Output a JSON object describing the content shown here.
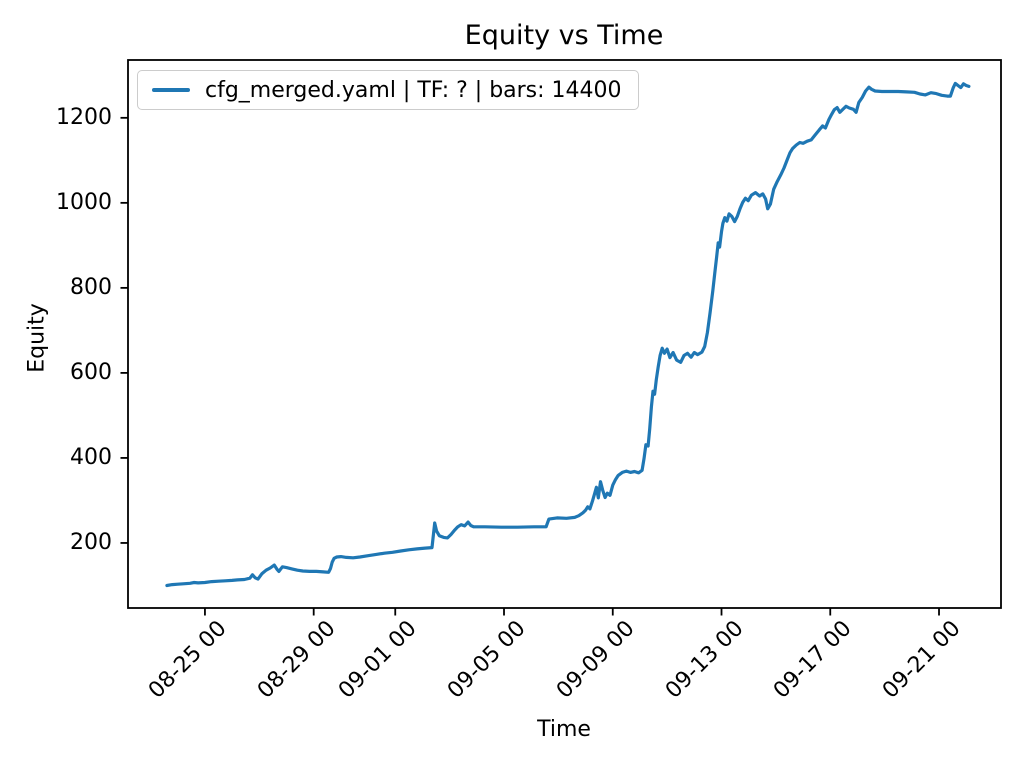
{
  "figure": {
    "background": "#ffffff",
    "text_color": "#000000",
    "spine_color": "#000000"
  },
  "legend": {
    "label": "cfg_merged.yaml | TF: ? | bars: 14400",
    "line_color": "#1f77b4",
    "position": "upper left",
    "border_color": "#cccccc"
  },
  "chart_data": {
    "type": "line",
    "title": "Equity vs Time",
    "xlabel": "Time",
    "ylabel": "Equity",
    "grid": false,
    "legend_position": "upper left",
    "x_unit": "days since 08-23 00:00, labels are MM-DD HH",
    "xlim": [
      -0.83,
      31.28
    ],
    "ylim": [
      47,
      1336
    ],
    "x_ticks": [
      {
        "day": 2,
        "label": "08-25 00"
      },
      {
        "day": 6,
        "label": "08-29 00"
      },
      {
        "day": 9,
        "label": "09-01 00"
      },
      {
        "day": 13,
        "label": "09-05 00"
      },
      {
        "day": 17,
        "label": "09-09 00"
      },
      {
        "day": 21,
        "label": "09-13 00"
      },
      {
        "day": 25,
        "label": "09-17 00"
      },
      {
        "day": 29,
        "label": "09-21 00"
      }
    ],
    "y_ticks": [
      {
        "value": 200,
        "label": "200"
      },
      {
        "value": 400,
        "label": "400"
      },
      {
        "value": 600,
        "label": "600"
      },
      {
        "value": 800,
        "label": "800"
      },
      {
        "value": 1000,
        "label": "1000"
      },
      {
        "value": 1200,
        "label": "1200"
      }
    ],
    "series": [
      {
        "name": "cfg_merged.yaml | TF: ? | bars: 14400",
        "color": "#1f77b4",
        "points": [
          [
            0.6,
            100
          ],
          [
            0.8,
            102
          ],
          [
            1.0,
            103
          ],
          [
            1.2,
            104
          ],
          [
            1.45,
            105
          ],
          [
            1.6,
            107
          ],
          [
            1.75,
            106
          ],
          [
            2.0,
            107
          ],
          [
            2.25,
            109
          ],
          [
            2.5,
            110
          ],
          [
            2.75,
            111
          ],
          [
            3.0,
            112
          ],
          [
            3.2,
            113
          ],
          [
            3.45,
            114
          ],
          [
            3.65,
            117
          ],
          [
            3.75,
            125
          ],
          [
            3.85,
            118
          ],
          [
            3.95,
            115
          ],
          [
            4.1,
            128
          ],
          [
            4.25,
            136
          ],
          [
            4.4,
            141
          ],
          [
            4.55,
            148
          ],
          [
            4.65,
            138
          ],
          [
            4.72,
            133
          ],
          [
            4.85,
            144
          ],
          [
            5.0,
            142
          ],
          [
            5.2,
            139
          ],
          [
            5.4,
            136
          ],
          [
            5.6,
            134
          ],
          [
            5.85,
            133
          ],
          [
            6.1,
            133
          ],
          [
            6.35,
            132
          ],
          [
            6.55,
            131
          ],
          [
            6.62,
            140
          ],
          [
            6.68,
            155
          ],
          [
            6.75,
            164
          ],
          [
            6.85,
            167
          ],
          [
            7.0,
            168
          ],
          [
            7.2,
            166
          ],
          [
            7.45,
            165
          ],
          [
            7.7,
            167
          ],
          [
            8.0,
            170
          ],
          [
            8.3,
            173
          ],
          [
            8.6,
            176
          ],
          [
            8.9,
            178
          ],
          [
            9.2,
            181
          ],
          [
            9.5,
            184
          ],
          [
            9.8,
            186
          ],
          [
            10.1,
            188
          ],
          [
            10.35,
            189
          ],
          [
            10.45,
            247
          ],
          [
            10.52,
            228
          ],
          [
            10.62,
            217
          ],
          [
            10.78,
            213
          ],
          [
            10.92,
            212
          ],
          [
            11.05,
            220
          ],
          [
            11.18,
            230
          ],
          [
            11.3,
            238
          ],
          [
            11.42,
            243
          ],
          [
            11.55,
            240
          ],
          [
            11.68,
            249
          ],
          [
            11.78,
            241
          ],
          [
            11.88,
            238
          ],
          [
            12.3,
            238
          ],
          [
            12.9,
            237
          ],
          [
            13.5,
            237
          ],
          [
            14.1,
            238
          ],
          [
            14.55,
            238
          ],
          [
            14.65,
            256
          ],
          [
            14.95,
            259
          ],
          [
            15.3,
            258
          ],
          [
            15.6,
            260
          ],
          [
            15.75,
            264
          ],
          [
            15.9,
            271
          ],
          [
            16.0,
            277
          ],
          [
            16.08,
            285
          ],
          [
            16.16,
            280
          ],
          [
            16.25,
            298
          ],
          [
            16.33,
            315
          ],
          [
            16.4,
            331
          ],
          [
            16.47,
            306
          ],
          [
            16.55,
            344
          ],
          [
            16.63,
            324
          ],
          [
            16.72,
            307
          ],
          [
            16.8,
            317
          ],
          [
            16.9,
            312
          ],
          [
            17.0,
            336
          ],
          [
            17.1,
            349
          ],
          [
            17.2,
            359
          ],
          [
            17.35,
            366
          ],
          [
            17.5,
            369
          ],
          [
            17.65,
            366
          ],
          [
            17.8,
            368
          ],
          [
            17.95,
            365
          ],
          [
            18.08,
            371
          ],
          [
            18.15,
            398
          ],
          [
            18.22,
            431
          ],
          [
            18.3,
            428
          ],
          [
            18.36,
            468
          ],
          [
            18.42,
            520
          ],
          [
            18.48,
            557
          ],
          [
            18.54,
            550
          ],
          [
            18.6,
            584
          ],
          [
            18.67,
            614
          ],
          [
            18.74,
            641
          ],
          [
            18.82,
            658
          ],
          [
            18.9,
            646
          ],
          [
            19.0,
            656
          ],
          [
            19.1,
            636
          ],
          [
            19.22,
            648
          ],
          [
            19.35,
            630
          ],
          [
            19.5,
            625
          ],
          [
            19.62,
            641
          ],
          [
            19.75,
            646
          ],
          [
            19.88,
            637
          ],
          [
            20.0,
            648
          ],
          [
            20.12,
            643
          ],
          [
            20.28,
            649
          ],
          [
            20.38,
            662
          ],
          [
            20.48,
            695
          ],
          [
            20.58,
            742
          ],
          [
            20.68,
            793
          ],
          [
            20.75,
            833
          ],
          [
            20.82,
            872
          ],
          [
            20.88,
            906
          ],
          [
            20.93,
            896
          ],
          [
            21.0,
            932
          ],
          [
            21.05,
            952
          ],
          [
            21.12,
            965
          ],
          [
            21.2,
            957
          ],
          [
            21.28,
            974
          ],
          [
            21.38,
            968
          ],
          [
            21.48,
            956
          ],
          [
            21.58,
            968
          ],
          [
            21.68,
            986
          ],
          [
            21.78,
            1001
          ],
          [
            21.88,
            1011
          ],
          [
            21.98,
            1005
          ],
          [
            22.1,
            1018
          ],
          [
            22.25,
            1024
          ],
          [
            22.4,
            1016
          ],
          [
            22.52,
            1021
          ],
          [
            22.62,
            1009
          ],
          [
            22.7,
            986
          ],
          [
            22.8,
            997
          ],
          [
            22.92,
            1032
          ],
          [
            23.05,
            1050
          ],
          [
            23.18,
            1066
          ],
          [
            23.3,
            1082
          ],
          [
            23.42,
            1102
          ],
          [
            23.52,
            1118
          ],
          [
            23.62,
            1128
          ],
          [
            23.75,
            1136
          ],
          [
            23.88,
            1142
          ],
          [
            24.0,
            1140
          ],
          [
            24.15,
            1145
          ],
          [
            24.3,
            1148
          ],
          [
            24.45,
            1160
          ],
          [
            24.6,
            1172
          ],
          [
            24.72,
            1181
          ],
          [
            24.82,
            1176
          ],
          [
            24.95,
            1196
          ],
          [
            25.05,
            1208
          ],
          [
            25.15,
            1219
          ],
          [
            25.25,
            1224
          ],
          [
            25.35,
            1213
          ],
          [
            25.48,
            1221
          ],
          [
            25.58,
            1227
          ],
          [
            25.7,
            1223
          ],
          [
            25.85,
            1220
          ],
          [
            25.95,
            1213
          ],
          [
            26.05,
            1236
          ],
          [
            26.18,
            1248
          ],
          [
            26.3,
            1263
          ],
          [
            26.42,
            1272
          ],
          [
            26.52,
            1267
          ],
          [
            26.65,
            1263
          ],
          [
            26.9,
            1262
          ],
          [
            27.2,
            1262
          ],
          [
            27.5,
            1262
          ],
          [
            27.8,
            1261
          ],
          [
            28.1,
            1260
          ],
          [
            28.3,
            1256
          ],
          [
            28.5,
            1254
          ],
          [
            28.7,
            1259
          ],
          [
            28.9,
            1257
          ],
          [
            29.1,
            1253
          ],
          [
            29.3,
            1251
          ],
          [
            29.42,
            1251
          ],
          [
            29.52,
            1270
          ],
          [
            29.6,
            1281
          ],
          [
            29.7,
            1276
          ],
          [
            29.8,
            1271
          ],
          [
            29.9,
            1280
          ],
          [
            30.0,
            1276
          ],
          [
            30.1,
            1274
          ]
        ]
      }
    ]
  }
}
